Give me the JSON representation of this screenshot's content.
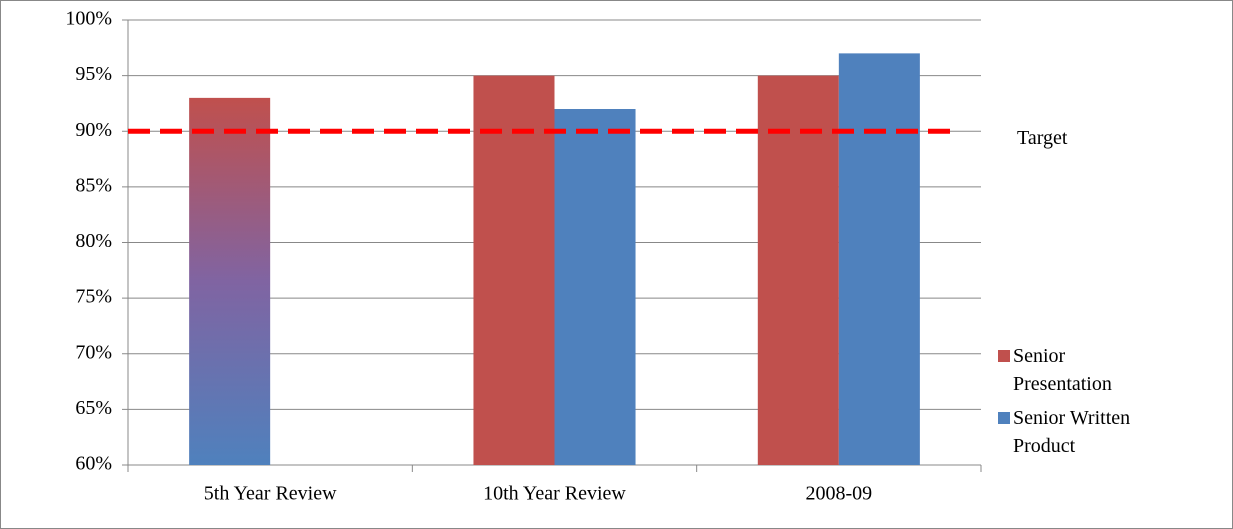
{
  "chart_data": {
    "type": "bar",
    "categories": [
      "5th Year Review",
      "10th Year Review",
      "2008-09"
    ],
    "series": [
      {
        "name": "Senior Presentation",
        "color": "#c0504d",
        "values": [
          93,
          95,
          95
        ]
      },
      {
        "name": "Senior Written Product",
        "color": "#4f81bd",
        "values": [
          null,
          92,
          97
        ]
      }
    ],
    "target": {
      "label": "Target",
      "value": 90,
      "color": "#ff0000"
    },
    "ylim": [
      60,
      100
    ],
    "yticks": [
      {
        "value": 60,
        "label": "60%"
      },
      {
        "value": 65,
        "label": "65%"
      },
      {
        "value": 70,
        "label": "70%"
      },
      {
        "value": 75,
        "label": "75%"
      },
      {
        "value": 80,
        "label": "80%"
      },
      {
        "value": 85,
        "label": "85%"
      },
      {
        "value": 90,
        "label": "90%"
      },
      {
        "value": 95,
        "label": "95%"
      },
      {
        "value": 100,
        "label": "100%"
      }
    ],
    "grid": true,
    "legend": "right"
  }
}
